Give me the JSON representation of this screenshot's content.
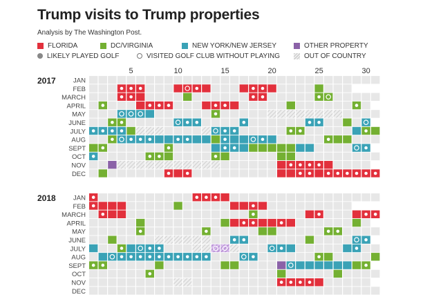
{
  "title": "Trump visits to Trump properties",
  "subtitle": "Analysis by The Washington Post.",
  "legend": [
    {
      "key": "F",
      "label": "FLORIDA",
      "kind": "swatch",
      "color": "#e2303c"
    },
    {
      "key": "D",
      "label": "DC/VIRGINIA",
      "kind": "swatch",
      "color": "#74b032"
    },
    {
      "key": "N",
      "label": "NEW YORK/NEW JERSEY",
      "kind": "swatch",
      "color": "#3aa2b6"
    },
    {
      "key": "O",
      "label": "OTHER PROPERTY",
      "kind": "swatch",
      "color": "#8b62a8"
    },
    {
      "key": "golf",
      "label": "LIKELY PLAYED GOLF",
      "kind": "dot"
    },
    {
      "key": "ring",
      "label": "VISITED GOLF CLUB WITHOUT PLAYING",
      "kind": "ring"
    },
    {
      "key": "X",
      "label": "OUT OF  COUNTRY",
      "kind": "hatch"
    }
  ],
  "chart_data": {
    "type": "heatmap",
    "title": "Trump visits to Trump properties",
    "subtitle": "Analysis by The Washington Post.",
    "x_ticks": [
      5,
      10,
      15,
      20,
      25,
      30
    ],
    "cell_codes": {
      "F": "Florida",
      "D": "DC/Virginia",
      "N": "New York/New Jersey",
      "O": "Other property",
      "X": "Out of country",
      "-": "no visit",
      "suffix_g": "likely played golf",
      "suffix_r": "visited golf club without playing"
    },
    "colors": {
      "F": "#e2303c",
      "D": "#74b032",
      "N": "#3aa2b6",
      "O": "#8b62a8",
      "empty": "#e7e7e7",
      "invalid": "#ffffff"
    },
    "years": [
      {
        "year": "2017",
        "months": [
          {
            "label": "JAN",
            "days": 31,
            "cells": []
          },
          {
            "label": "FEB",
            "days": 28,
            "cells": [
              "4:Fg",
              "5:Fg",
              "6:Fg",
              "10:F",
              "11:Fr",
              "12:Fg",
              "13:F",
              "17:F",
              "18:Fg",
              "19:Fg",
              "20:F",
              "25:D"
            ]
          },
          {
            "label": "MARCH",
            "days": 31,
            "cells": [
              "4:Fg",
              "5:Fg",
              "6:F",
              "11:D",
              "18:Fg",
              "19:Fg",
              "25:Dg",
              "26:Dr"
            ]
          },
          {
            "label": "APRIL",
            "days": 30,
            "cells": [
              "2:Dg",
              "6:F",
              "7:Fg",
              "8:Fg",
              "9:Fg",
              "13:F",
              "14:Fg",
              "15:Fg",
              "16:F",
              "22:D",
              "29:Dg"
            ]
          },
          {
            "label": "MAY",
            "days": 31,
            "cells": [
              "4:Nr",
              "5:Nr",
              "6:Nr",
              "7:N",
              "14:Dg",
              "20:X",
              "21:X",
              "22:X",
              "23:X",
              "24:X",
              "25:X",
              "26:X",
              "27:X"
            ]
          },
          {
            "label": "JUNE",
            "days": 30,
            "cells": [
              "3:Dg",
              "4:Dg",
              "10:Nr",
              "11:Ng",
              "12:Ng",
              "17:Ng",
              "24:Ng",
              "25:Ng",
              "28:D",
              "30:Nr"
            ]
          },
          {
            "label": "JULY",
            "days": 31,
            "cells": [
              "1:Ng",
              "2:Ng",
              "3:Ng",
              "4:Ng",
              "5:D",
              "6:X",
              "7:X",
              "8:X",
              "13:X",
              "14:Nr",
              "15:Ng",
              "16:Ng",
              "22:Dg",
              "23:Dg",
              "29:N",
              "30:Dg",
              "31:D"
            ]
          },
          {
            "label": "AUG",
            "days": 31,
            "cells": [
              "3:Dg",
              "4:Nr",
              "5:Ng",
              "6:Ng",
              "7:Ng",
              "8:N",
              "9:N",
              "10:Ng",
              "11:Ng",
              "12:N",
              "13:N",
              "14:D",
              "15:Ng",
              "16:N",
              "17:N",
              "18:Nr",
              "19:Ng",
              "20:N",
              "26:Dg",
              "27:D",
              "28:D"
            ]
          },
          {
            "label": "SEPT",
            "days": 30,
            "cells": [
              "1:D",
              "2:Dg",
              "9:Dg",
              "14:N",
              "15:Ng",
              "16:Ng",
              "17:N",
              "18:D",
              "19:D",
              "20:D",
              "21:D",
              "22:D",
              "23:N",
              "24:N",
              "29:Nr",
              "30:Ng"
            ]
          },
          {
            "label": "OCT",
            "days": 31,
            "cells": [
              "1:Ng",
              "7:Dg",
              "8:Dg",
              "9:D",
              "14:Dg",
              "15:D",
              "21:D",
              "22:D"
            ]
          },
          {
            "label": "NOV",
            "days": 30,
            "cells": [
              "3:O",
              "4:X",
              "5:X",
              "6:X",
              "7:X",
              "8:X",
              "9:X",
              "10:X",
              "11:X",
              "12:X",
              "13:X",
              "14:X",
              "21:F",
              "22:Fg",
              "23:Fg",
              "24:Fg",
              "25:Fg",
              "26:F"
            ]
          },
          {
            "label": "DEC",
            "days": 31,
            "cells": [
              "2:D",
              "9:Fg",
              "10:F",
              "11:Fg",
              "21:F",
              "22:F",
              "23:Fg",
              "24:Fg",
              "25:F",
              "26:Fg",
              "27:Fg",
              "28:Fg",
              "29:Fg",
              "30:Fg",
              "31:Fg"
            ]
          }
        ]
      },
      {
        "year": "2018",
        "months": [
          {
            "label": "JAN",
            "days": 31,
            "cells": [
              "1:Fg",
              "12:Fg",
              "13:Fg",
              "14:Fg",
              "15:F"
            ]
          },
          {
            "label": "FEB",
            "days": 28,
            "cells": [
              "1:Fg",
              "2:F",
              "3:F",
              "4:F",
              "10:D",
              "16:F",
              "17:F",
              "18:Fg",
              "19:F"
            ]
          },
          {
            "label": "MARCH",
            "days": 31,
            "cells": [
              "2:Fg",
              "3:F",
              "4:F",
              "18:Dg",
              "24:F",
              "25:Fg",
              "29:F",
              "30:Fg",
              "31:Fg"
            ]
          },
          {
            "label": "APRIL",
            "days": 30,
            "cells": [
              "6:D",
              "15:D",
              "16:F",
              "17:Fg",
              "18:Fg",
              "19:F",
              "20:F",
              "21:Fg",
              "22:F",
              "29:D"
            ]
          },
          {
            "label": "MAY",
            "days": 31,
            "cells": [
              "6:Dg",
              "13:Dg",
              "19:D",
              "20:D",
              "26:Dg",
              "27:Dg"
            ]
          },
          {
            "label": "JUNE",
            "days": 30,
            "cells": [
              "3:D",
              "8:X",
              "9:X",
              "10:X",
              "11:X",
              "12:X",
              "13:X",
              "16:Ng",
              "17:Ng",
              "24:D",
              "29:Nr",
              "30:Ng"
            ]
          },
          {
            "label": "JULY",
            "days": 31,
            "cells": [
              "1:N",
              "4:Dg",
              "5:N",
              "6:Nr",
              "7:Ng",
              "8:Ng",
              "12:X",
              "13:X",
              "14:Xr",
              "15:Xr",
              "16:X",
              "20:Nr",
              "21:Ng",
              "22:N",
              "28:N",
              "29:Ng"
            ]
          },
          {
            "label": "AUG",
            "days": 31,
            "cells": [
              "2:N",
              "3:Nr",
              "4:Ng",
              "5:Ng",
              "6:Ng",
              "7:Ng",
              "8:Ng",
              "9:Ng",
              "10:Ng",
              "11:Ng",
              "12:Ng",
              "13:Ng",
              "17:Nr",
              "18:Ng",
              "25:Dg",
              "26:D",
              "31:D"
            ]
          },
          {
            "label": "SEPT",
            "days": 30,
            "cells": [
              "1:Dg",
              "2:Dg",
              "8:D",
              "15:D",
              "16:D",
              "21:O",
              "22:Nr",
              "23:N",
              "24:N",
              "25:N",
              "26:N",
              "27:N",
              "28:N",
              "29:D",
              "30:Dg"
            ]
          },
          {
            "label": "OCT",
            "days": 31,
            "cells": [
              "7:Dg",
              "21:D",
              "27:D"
            ]
          },
          {
            "label": "NOV",
            "days": 30,
            "cells": [
              "10:X",
              "11:X",
              "21:Fg",
              "22:Fg",
              "23:Fg",
              "24:Fg",
              "25:F"
            ]
          },
          {
            "label": "DEC",
            "days": 31,
            "cells": []
          }
        ]
      }
    ]
  }
}
